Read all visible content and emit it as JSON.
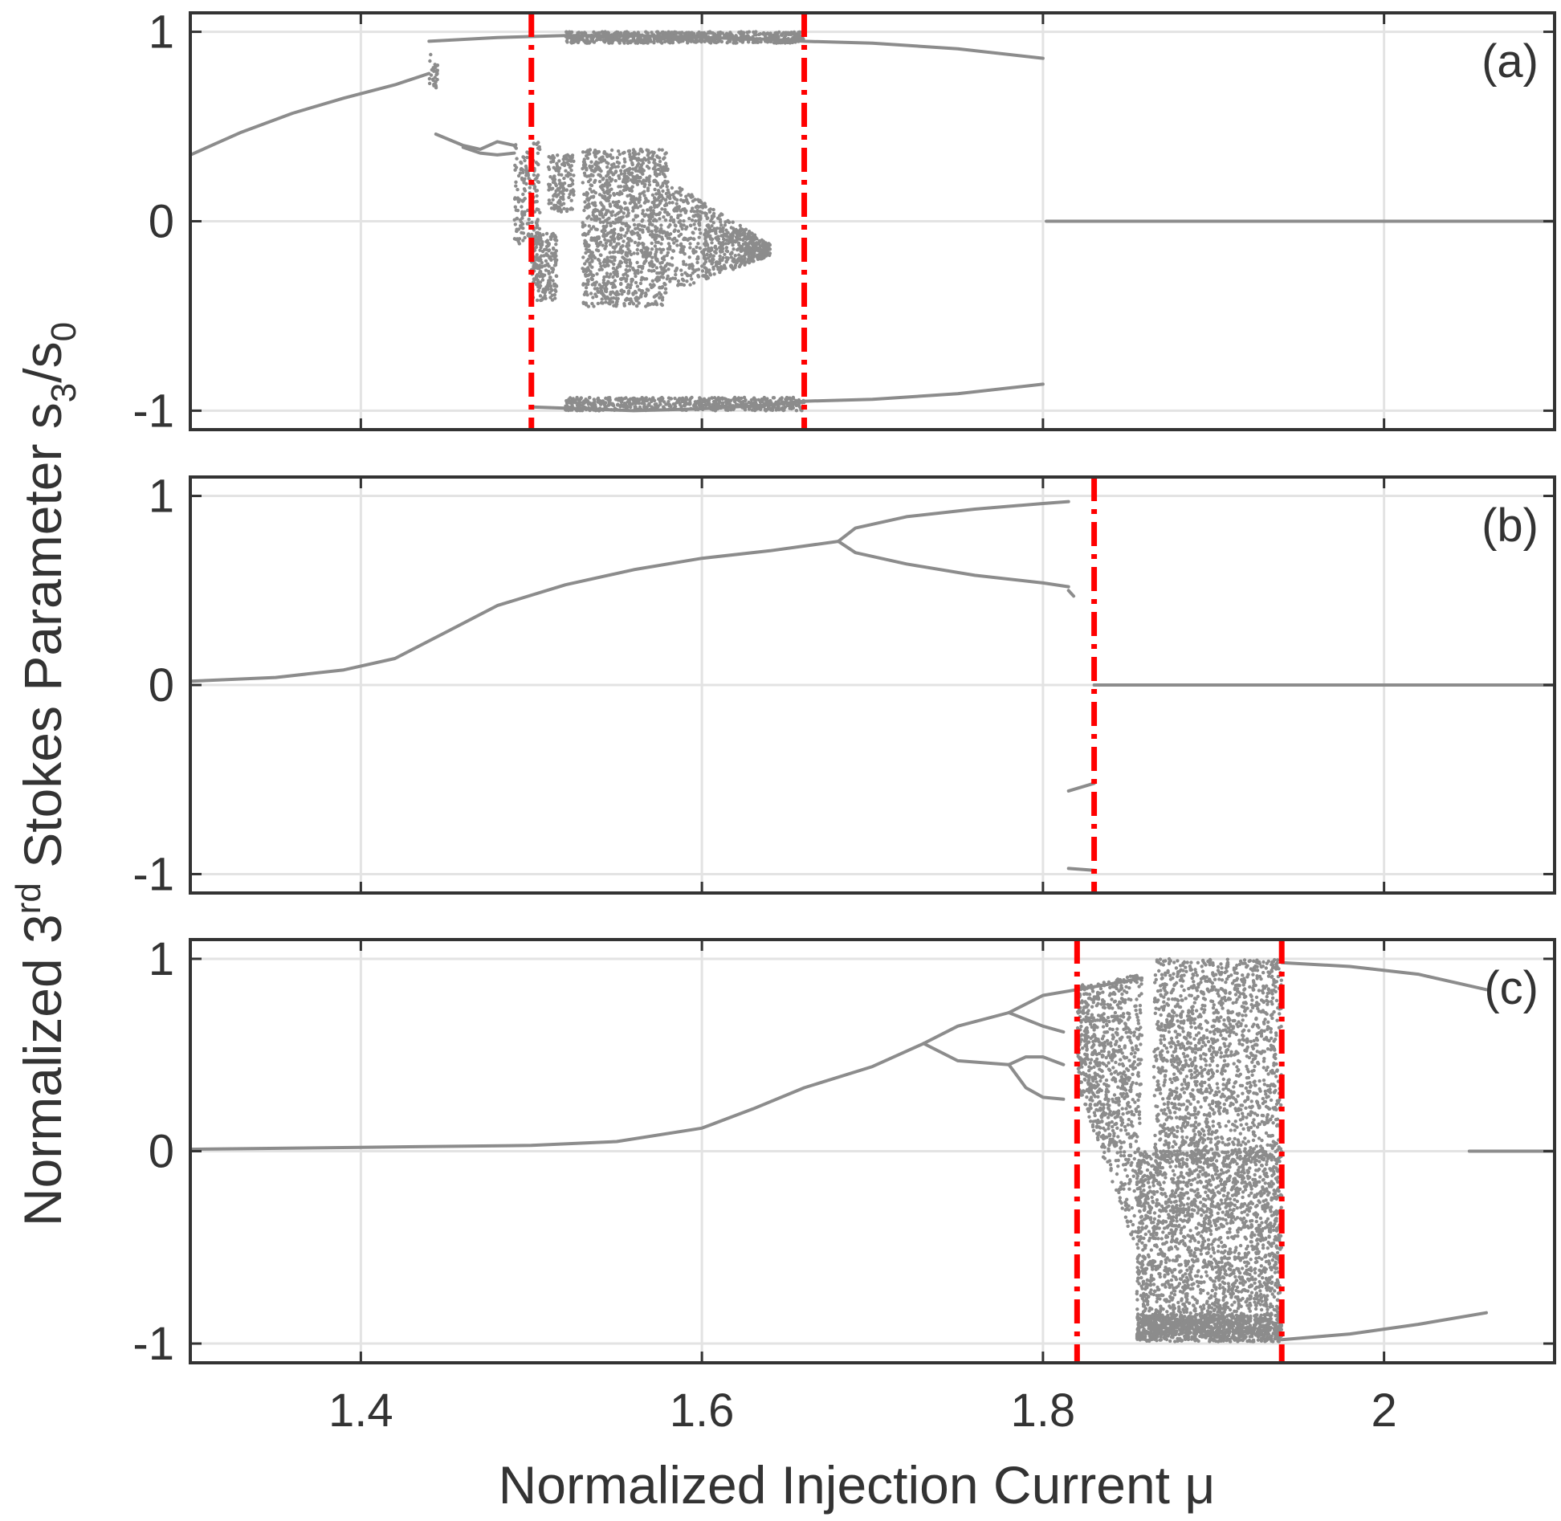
{
  "colors": {
    "data": "#8c8c8c",
    "marker_line": "#ff0000",
    "axis": "#333333",
    "grid": "#e3e3e3",
    "background": "#ffffff"
  },
  "chart_data": {
    "type": "scatter",
    "xlabel": "Normalized Injection Current μ",
    "ylabel": {
      "prefix": "Normalized 3",
      "sup": "rd",
      "middle": " Stokes Parameter s",
      "sub1": "3",
      "slash": "/s",
      "sub2": "0"
    },
    "x_ticks": [
      "1.4",
      "1.6",
      "1.8",
      "2"
    ],
    "x_tick_values": [
      1.4,
      1.6,
      1.8,
      2.0
    ],
    "xlim": [
      1.3,
      2.1
    ],
    "ylim": [
      -1.1,
      1.1
    ],
    "y_ticks": [
      "-1",
      "0",
      "1"
    ],
    "y_tick_values": [
      -1,
      0,
      1
    ],
    "grid": true,
    "panels": [
      {
        "label": "(a)",
        "vlines": [
          1.5,
          1.66
        ],
        "curves": [
          [
            [
              1.3,
              0.35
            ],
            [
              1.33,
              0.47
            ],
            [
              1.36,
              0.57
            ],
            [
              1.39,
              0.65
            ],
            [
              1.42,
              0.72
            ],
            [
              1.44,
              0.78
            ]
          ],
          [
            [
              1.44,
              0.95
            ],
            [
              1.48,
              0.97
            ],
            [
              1.52,
              0.98
            ],
            [
              1.56,
              0.98
            ],
            [
              1.6,
              0.97
            ],
            [
              1.64,
              0.96
            ],
            [
              1.66,
              0.95
            ],
            [
              1.7,
              0.94
            ],
            [
              1.75,
              0.91
            ],
            [
              1.8,
              0.86
            ]
          ],
          [
            [
              1.444,
              0.46
            ],
            [
              1.46,
              0.4
            ],
            [
              1.47,
              0.38
            ],
            [
              1.48,
              0.42
            ],
            [
              1.49,
              0.4
            ]
          ],
          [
            [
              1.46,
              0.39
            ],
            [
              1.47,
              0.36
            ],
            [
              1.48,
              0.35
            ],
            [
              1.49,
              0.36
            ]
          ],
          [
            [
              1.5,
              -0.98
            ],
            [
              1.56,
              -1.0
            ],
            [
              1.6,
              -0.99
            ],
            [
              1.64,
              -0.97
            ],
            [
              1.66,
              -0.95
            ],
            [
              1.7,
              -0.94
            ],
            [
              1.75,
              -0.91
            ],
            [
              1.8,
              -0.86
            ]
          ],
          [
            [
              1.802,
              0.0
            ],
            [
              2.1,
              0.0
            ]
          ]
        ],
        "clouds": [
          {
            "x": [
              1.49,
              1.505
            ],
            "y": [
              -0.12,
              0.42
            ],
            "n": 180
          },
          {
            "x": [
              1.5,
              1.515
            ],
            "y": [
              -0.42,
              -0.05
            ],
            "n": 220
          },
          {
            "x": [
              1.51,
              1.525
            ],
            "y": [
              0.05,
              0.35
            ],
            "n": 150
          },
          {
            "x": [
              1.53,
              1.58
            ],
            "y": [
              -0.45,
              0.38
            ],
            "n": 1200,
            "taper": [
              1.58,
              1.64
            ]
          },
          {
            "x": [
              1.58,
              1.64
            ],
            "y": [
              -0.38,
              0.22
            ],
            "n": 700,
            "taper": [
              1.58,
              1.64
            ]
          },
          {
            "x": [
              1.52,
              1.66
            ],
            "y": [
              0.94,
              1.0
            ],
            "n": 700
          },
          {
            "x": [
              1.52,
              1.66
            ],
            "y": [
              -1.0,
              -0.93
            ],
            "n": 600
          },
          {
            "x": [
              1.44,
              1.445
            ],
            "y": [
              0.7,
              0.9
            ],
            "n": 30
          }
        ]
      },
      {
        "label": "(b)",
        "vlines": [
          1.83
        ],
        "curves": [
          [
            [
              1.3,
              0.02
            ],
            [
              1.35,
              0.04
            ],
            [
              1.39,
              0.08
            ],
            [
              1.42,
              0.14
            ],
            [
              1.45,
              0.28
            ],
            [
              1.48,
              0.42
            ],
            [
              1.52,
              0.53
            ],
            [
              1.56,
              0.61
            ],
            [
              1.6,
              0.67
            ],
            [
              1.64,
              0.71
            ],
            [
              1.68,
              0.76
            ]
          ],
          [
            [
              1.68,
              0.76
            ],
            [
              1.69,
              0.83
            ],
            [
              1.72,
              0.89
            ],
            [
              1.76,
              0.93
            ],
            [
              1.8,
              0.96
            ],
            [
              1.815,
              0.97
            ]
          ],
          [
            [
              1.68,
              0.76
            ],
            [
              1.69,
              0.7
            ],
            [
              1.72,
              0.64
            ],
            [
              1.76,
              0.58
            ],
            [
              1.8,
              0.54
            ],
            [
              1.815,
              0.52
            ]
          ],
          [
            [
              1.815,
              0.5
            ],
            [
              1.818,
              0.47
            ]
          ],
          [
            [
              1.815,
              -0.56
            ],
            [
              1.83,
              -0.52
            ]
          ],
          [
            [
              1.815,
              -0.97
            ],
            [
              1.83,
              -0.98
            ]
          ],
          [
            [
              1.83,
              0.0
            ],
            [
              2.1,
              0.0
            ]
          ]
        ],
        "clouds": []
      },
      {
        "label": "(c)",
        "vlines": [
          1.82,
          1.94
        ],
        "curves": [
          [
            [
              1.3,
              0.01
            ],
            [
              1.4,
              0.02
            ],
            [
              1.5,
              0.03
            ],
            [
              1.55,
              0.05
            ],
            [
              1.6,
              0.12
            ],
            [
              1.63,
              0.22
            ],
            [
              1.66,
              0.33
            ],
            [
              1.7,
              0.44
            ],
            [
              1.73,
              0.56
            ]
          ],
          [
            [
              1.73,
              0.56
            ],
            [
              1.75,
              0.65
            ],
            [
              1.78,
              0.72
            ]
          ],
          [
            [
              1.73,
              0.56
            ],
            [
              1.75,
              0.47
            ],
            [
              1.78,
              0.45
            ]
          ],
          [
            [
              1.78,
              0.72
            ],
            [
              1.8,
              0.81
            ],
            [
              1.82,
              0.84
            ],
            [
              1.84,
              0.87
            ],
            [
              1.858,
              0.9
            ]
          ],
          [
            [
              1.78,
              0.72
            ],
            [
              1.8,
              0.65
            ],
            [
              1.812,
              0.62
            ]
          ],
          [
            [
              1.78,
              0.45
            ],
            [
              1.79,
              0.49
            ],
            [
              1.8,
              0.49
            ],
            [
              1.812,
              0.45
            ]
          ],
          [
            [
              1.78,
              0.45
            ],
            [
              1.79,
              0.33
            ],
            [
              1.8,
              0.28
            ],
            [
              1.812,
              0.27
            ]
          ],
          [
            [
              1.94,
              -0.98
            ],
            [
              1.98,
              -0.95
            ],
            [
              2.02,
              -0.9
            ],
            [
              2.06,
              -0.84
            ]
          ],
          [
            [
              1.94,
              0.98
            ],
            [
              1.98,
              0.96
            ],
            [
              2.02,
              0.92
            ],
            [
              2.06,
              0.84
            ]
          ],
          [
            [
              2.05,
              0.0
            ],
            [
              2.1,
              0.0
            ]
          ]
        ],
        "clouds": [
          {
            "x": [
              1.82,
              1.858
            ],
            "y": [
              -0.6,
              0.92
            ],
            "n": 900,
            "shape": "upper-wedge"
          },
          {
            "x": [
              1.865,
              1.94
            ],
            "y": [
              -0.05,
              1.0
            ],
            "n": 1600
          },
          {
            "x": [
              1.855,
              1.94
            ],
            "y": [
              -0.95,
              0.0
            ],
            "n": 2200
          },
          {
            "x": [
              1.855,
              1.94
            ],
            "y": [
              -0.99,
              -0.85
            ],
            "n": 800
          }
        ]
      }
    ]
  }
}
